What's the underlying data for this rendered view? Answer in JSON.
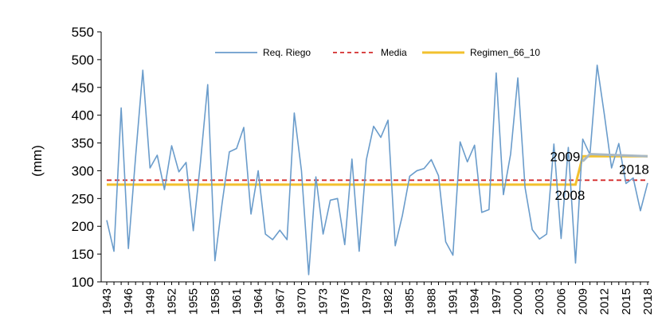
{
  "chart_data": {
    "type": "line",
    "title": "",
    "xlabel": "",
    "ylabel": "(mm)",
    "ylim": [
      100,
      550
    ],
    "yticks": [
      100,
      150,
      200,
      250,
      300,
      350,
      400,
      450,
      500,
      550
    ],
    "xlim": [
      1943,
      2018
    ],
    "xticks": [
      1943,
      1946,
      1949,
      1952,
      1955,
      1958,
      1961,
      1964,
      1967,
      1970,
      1973,
      1976,
      1979,
      1982,
      1985,
      1988,
      1991,
      1994,
      1997,
      2000,
      2003,
      2006,
      2009,
      2012,
      2015,
      2018
    ],
    "legend": {
      "position": "top",
      "entries": [
        "Req. Riego",
        "Media",
        "Regimen_66_10"
      ]
    },
    "series": [
      {
        "name": "Req. Riego",
        "color": "#6a9ccb",
        "style": "solid",
        "x": [
          1943,
          1944,
          1945,
          1946,
          1947,
          1948,
          1949,
          1950,
          1951,
          1952,
          1953,
          1954,
          1955,
          1956,
          1957,
          1958,
          1959,
          1960,
          1961,
          1962,
          1963,
          1964,
          1965,
          1966,
          1967,
          1968,
          1969,
          1970,
          1971,
          1972,
          1973,
          1974,
          1975,
          1976,
          1977,
          1978,
          1979,
          1980,
          1981,
          1982,
          1983,
          1984,
          1985,
          1986,
          1987,
          1988,
          1989,
          1990,
          1991,
          1992,
          1993,
          1994,
          1995,
          1996,
          1997,
          1998,
          1999,
          2000,
          2001,
          2002,
          2003,
          2004,
          2005,
          2006,
          2007,
          2008,
          2009,
          2010,
          2011,
          2012,
          2013,
          2014,
          2015,
          2016,
          2017,
          2018
        ],
        "values": [
          211,
          155,
          413,
          160,
          325,
          481,
          305,
          328,
          266,
          345,
          298,
          315,
          192,
          316,
          455,
          138,
          242,
          334,
          340,
          378,
          222,
          300,
          186,
          176,
          193,
          176,
          404,
          300,
          113,
          289,
          186,
          247,
          250,
          167,
          321,
          155,
          320,
          380,
          360,
          391,
          165,
          220,
          290,
          300,
          304,
          320,
          291,
          172,
          148,
          352,
          316,
          346,
          225,
          230,
          476,
          257,
          330,
          467,
          270,
          194,
          177,
          186,
          348,
          178,
          342,
          134,
          357,
          329,
          490,
          401,
          305,
          349,
          277,
          287,
          228,
          278
        ]
      },
      {
        "name": "Media",
        "color": "#d42b2b",
        "style": "dashed",
        "x": [
          1943,
          2018
        ],
        "values": [
          283,
          283
        ]
      },
      {
        "name": "Regimen_66_10",
        "color": "#f2c12e",
        "style": "solid",
        "x": [
          1943,
          2008,
          2009,
          2018
        ],
        "values": [
          275,
          275,
          326,
          326
        ]
      }
    ],
    "annotations": [
      {
        "text": "2009",
        "x": 2009,
        "y": 326
      },
      {
        "text": "2008",
        "x": 2008,
        "y": 275
      },
      {
        "text": "2018",
        "x": 2018,
        "y": 326
      }
    ],
    "overlay_line": {
      "color": "#a8b8c4",
      "x": [
        2009,
        2010,
        2018
      ],
      "values": [
        317,
        330,
        326
      ]
    }
  }
}
